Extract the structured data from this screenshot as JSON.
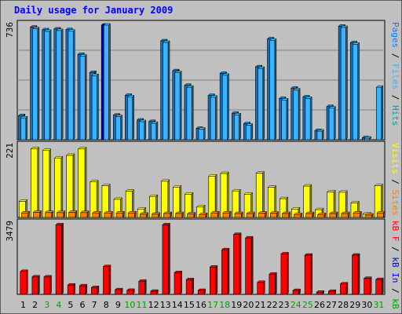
{
  "chart_data": {
    "type": "bar",
    "title": "Daily usage for January 2009",
    "days": [
      "1",
      "2",
      "3",
      "4",
      "5",
      "6",
      "7",
      "8",
      "9",
      "10",
      "11",
      "12",
      "13",
      "14",
      "15",
      "16",
      "17",
      "18",
      "19",
      "20",
      "21",
      "22",
      "23",
      "24",
      "25",
      "26",
      "27",
      "28",
      "29",
      "30",
      "31"
    ],
    "weekend_days": [
      3,
      4,
      10,
      11,
      17,
      18,
      24,
      25,
      31
    ],
    "panels": [
      {
        "max_label": "736",
        "max": 736,
        "series": [
          {
            "name": "Hits",
            "color": "#00a0a0",
            "values": [
              155,
              723,
              706,
              711,
              707,
              548,
              432,
              736,
              158,
              285,
              126,
              117,
              635,
              443,
              349,
              73,
              284,
              426,
              170,
              103,
              468,
              648,
              265,
              331,
              275,
              59,
              213,
              729,
              623,
              13,
              0
            ]
          },
          {
            "name": "Files",
            "color": "#3cb3ff",
            "values": [
              140,
              713,
              696,
              701,
              697,
              537,
              412,
              736,
              148,
              275,
              116,
              105,
              625,
              430,
              337,
              68,
              273,
              414,
              160,
              93,
              458,
              638,
              255,
              320,
              265,
              55,
              203,
              721,
              613,
              10,
              0
            ]
          },
          {
            "name": "Pages",
            "color": "#3cb3ff",
            "values": [
              0,
              0,
              0,
              0,
              0,
              0,
              0,
              0,
              0,
              0,
              0,
              0,
              0,
              0,
              0,
              0,
              0,
              0,
              0,
              0,
              0,
              0,
              0,
              0,
              0,
              0,
              0,
              0,
              0,
              0,
              337
            ]
          }
        ]
      },
      {
        "max_label": "221",
        "max": 221,
        "series": [
          {
            "name": "Visits",
            "color": "#ffff00",
            "values": [
              50,
              212,
              207,
              184,
              192,
              212,
              110,
              98,
              56,
              81,
              26,
              65,
              112,
              94,
              72,
              33,
              128,
              136,
              82,
              72,
              137,
              93,
              58,
              26,
              97,
              24,
              79,
              78,
              45,
              10,
              98
            ]
          },
          {
            "name": "Sites",
            "color": "#ff8000",
            "values": [
              14,
              16,
              15,
              15,
              16,
              15,
              14,
              14,
              14,
              14,
              10,
              10,
              12,
              12,
              11,
              9,
              14,
              14,
              12,
              12,
              13,
              13,
              12,
              9,
              12,
              9,
              12,
              12,
              14,
              7,
              14
            ]
          }
        ]
      },
      {
        "max_label": "3479",
        "max": 3479,
        "series": [
          {
            "name": "KBytes In",
            "color": "#0000ff",
            "values": [
              0,
              0,
              0,
              0,
              0,
              0,
              0,
              0,
              0,
              0,
              0,
              0,
              0,
              0,
              0,
              0,
              0,
              0,
              0,
              0,
              0,
              0,
              0,
              0,
              0,
              0,
              0,
              0,
              0,
              0,
              0
            ]
          },
          {
            "name": "KBytes Out",
            "color": "#00a000",
            "values": [
              0,
              0,
              0,
              0,
              0,
              0,
              0,
              0,
              0,
              0,
              0,
              0,
              0,
              0,
              0,
              0,
              0,
              0,
              0,
              0,
              0,
              0,
              0,
              0,
              0,
              0,
              0,
              0,
              0,
              0,
              0
            ]
          },
          {
            "name": "KBytes",
            "color": "#ff0000",
            "values": [
              1128,
              858,
              858,
              3425,
              457,
              420,
              335,
              1367,
              228,
              196,
              646,
              152,
              3425,
              1073,
              725,
              192,
              1345,
              2198,
              2950,
              2778,
              588,
              996,
              1993,
              190,
              1930,
              106,
              149,
              514,
              1932,
              785,
              731
            ]
          }
        ]
      }
    ],
    "legend_right": [
      [
        {
          "text": "Pages",
          "color": "#0080ff"
        },
        {
          "text": " / ",
          "color": "#000000"
        },
        {
          "text": "Files",
          "color": "#3cb3ff"
        },
        {
          "text": " / ",
          "color": "#000000"
        },
        {
          "text": "Hits",
          "color": "#00a0a0"
        }
      ],
      [
        {
          "text": "Visits",
          "color": "#ffff00"
        },
        {
          "text": " / ",
          "color": "#000000"
        },
        {
          "text": "Sites",
          "color": "#ff8000"
        }
      ],
      [
        {
          "text": "kB F",
          "color": "#ff0000"
        },
        {
          "text": " / ",
          "color": "#000000"
        },
        {
          "text": "kB In",
          "color": "#0000ff"
        },
        {
          "text": " / ",
          "color": "#000000"
        },
        {
          "text": "kB Out",
          "color": "#00a000"
        }
      ]
    ],
    "colors": {
      "background": "#c0c0c0",
      "border": "#000000",
      "title": "#0000ff",
      "weekend_label": "#00a000",
      "weekday_label": "#000000"
    }
  }
}
